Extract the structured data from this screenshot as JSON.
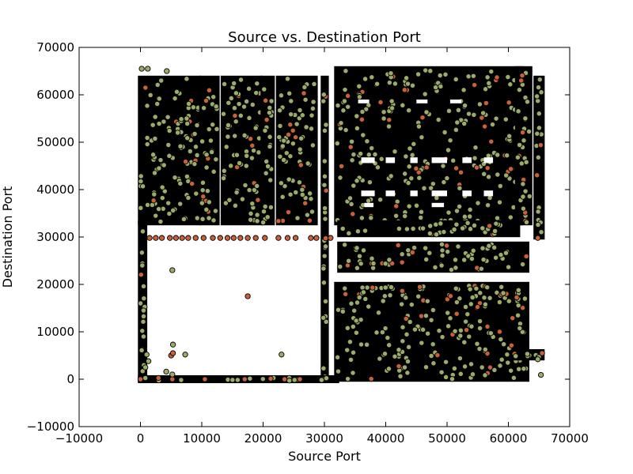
{
  "chart_data": {
    "type": "scatter",
    "title": "Source vs. Destination Port",
    "xlabel": "Source Port",
    "ylabel": "Destination Port",
    "xlim": [
      -10000,
      70000
    ],
    "ylim": [
      -10000,
      70000
    ],
    "xticks": [
      -10000,
      0,
      10000,
      20000,
      30000,
      40000,
      50000,
      60000,
      70000
    ],
    "yticks": [
      -10000,
      0,
      10000,
      20000,
      30000,
      40000,
      50000,
      60000,
      70000
    ],
    "grid": false,
    "legend": "none",
    "colors": {
      "series_a": "#9aab6a",
      "series_b": "#c8603a",
      "edge": "#000000"
    },
    "dense_regions": [
      {
        "x": [
          0,
          9500
        ],
        "y": [
          33000,
          63500
        ]
      },
      {
        "x": [
          10000,
          12500
        ],
        "y": [
          33000,
          63500
        ]
      },
      {
        "x": [
          13500,
          19500
        ],
        "y": [
          33000,
          63500
        ]
      },
      {
        "x": [
          20000,
          21500
        ],
        "y": [
          33000,
          63500
        ]
      },
      {
        "x": [
          22500,
          28500
        ],
        "y": [
          33000,
          63500
        ]
      },
      {
        "x": [
          29800,
          30300
        ],
        "y": [
          0,
          63500
        ]
      },
      {
        "x": [
          32000,
          62000
        ],
        "y": [
          33000,
          65500
        ]
      },
      {
        "x": [
          32500,
          61500
        ],
        "y": [
          30500,
          33000
        ]
      },
      {
        "x": [
          32500,
          63000
        ],
        "y": [
          23000,
          28500
        ]
      },
      {
        "x": [
          32000,
          63000
        ],
        "y": [
          0,
          20000
        ]
      },
      {
        "x": [
          61500,
          63500
        ],
        "y": [
          33000,
          65500
        ]
      },
      {
        "x": [
          64500,
          65500
        ],
        "y": [
          30000,
          63500
        ]
      },
      {
        "x": [
          0,
          700
        ],
        "y": [
          0,
          33000
        ]
      },
      {
        "x": [
          0,
          32000
        ],
        "y": [
          -300,
          300
        ]
      },
      {
        "x": [
          61000,
          65500
        ],
        "y": [
          4500,
          5800
        ]
      }
    ],
    "points_series_b": [
      [
        1500,
        29800
      ],
      [
        2500,
        29800
      ],
      [
        3500,
        29800
      ],
      [
        4800,
        29800
      ],
      [
        5800,
        29800
      ],
      [
        6800,
        29800
      ],
      [
        7800,
        29800
      ],
      [
        9000,
        29800
      ],
      [
        10300,
        29800
      ],
      [
        11800,
        29800
      ],
      [
        13000,
        29800
      ],
      [
        14200,
        29800
      ],
      [
        15200,
        29800
      ],
      [
        16300,
        29800
      ],
      [
        17500,
        29800
      ],
      [
        18800,
        29800
      ],
      [
        20300,
        29800
      ],
      [
        22500,
        29800
      ],
      [
        24000,
        29800
      ],
      [
        25300,
        29800
      ],
      [
        27800,
        29800
      ],
      [
        28700,
        29800
      ],
      [
        31000,
        29800
      ],
      [
        17500,
        17500
      ],
      [
        5000,
        5000
      ],
      [
        5300,
        5500
      ],
      [
        64800,
        29800
      ],
      [
        65500,
        5500
      ],
      [
        0,
        0
      ],
      [
        5200,
        0
      ],
      [
        10500,
        0
      ],
      [
        17000,
        0
      ],
      [
        23500,
        0
      ],
      [
        26000,
        0
      ]
    ],
    "points_series_a": [
      [
        5200,
        23000
      ],
      [
        5300,
        7300
      ],
      [
        7300,
        5200
      ],
      [
        1000,
        5200
      ],
      [
        4200,
        1600
      ],
      [
        5200,
        1000
      ],
      [
        23000,
        5200
      ],
      [
        300,
        24000
      ],
      [
        500,
        14500
      ],
      [
        300,
        10200
      ],
      [
        500,
        9000
      ],
      [
        800,
        2500
      ],
      [
        1300,
        3800
      ],
      [
        62500,
        2200
      ],
      [
        64800,
        4200
      ],
      [
        65300,
        900
      ],
      [
        4300,
        65000
      ],
      [
        200,
        65500
      ],
      [
        1200,
        65500
      ],
      [
        28200,
        58500
      ]
    ]
  }
}
